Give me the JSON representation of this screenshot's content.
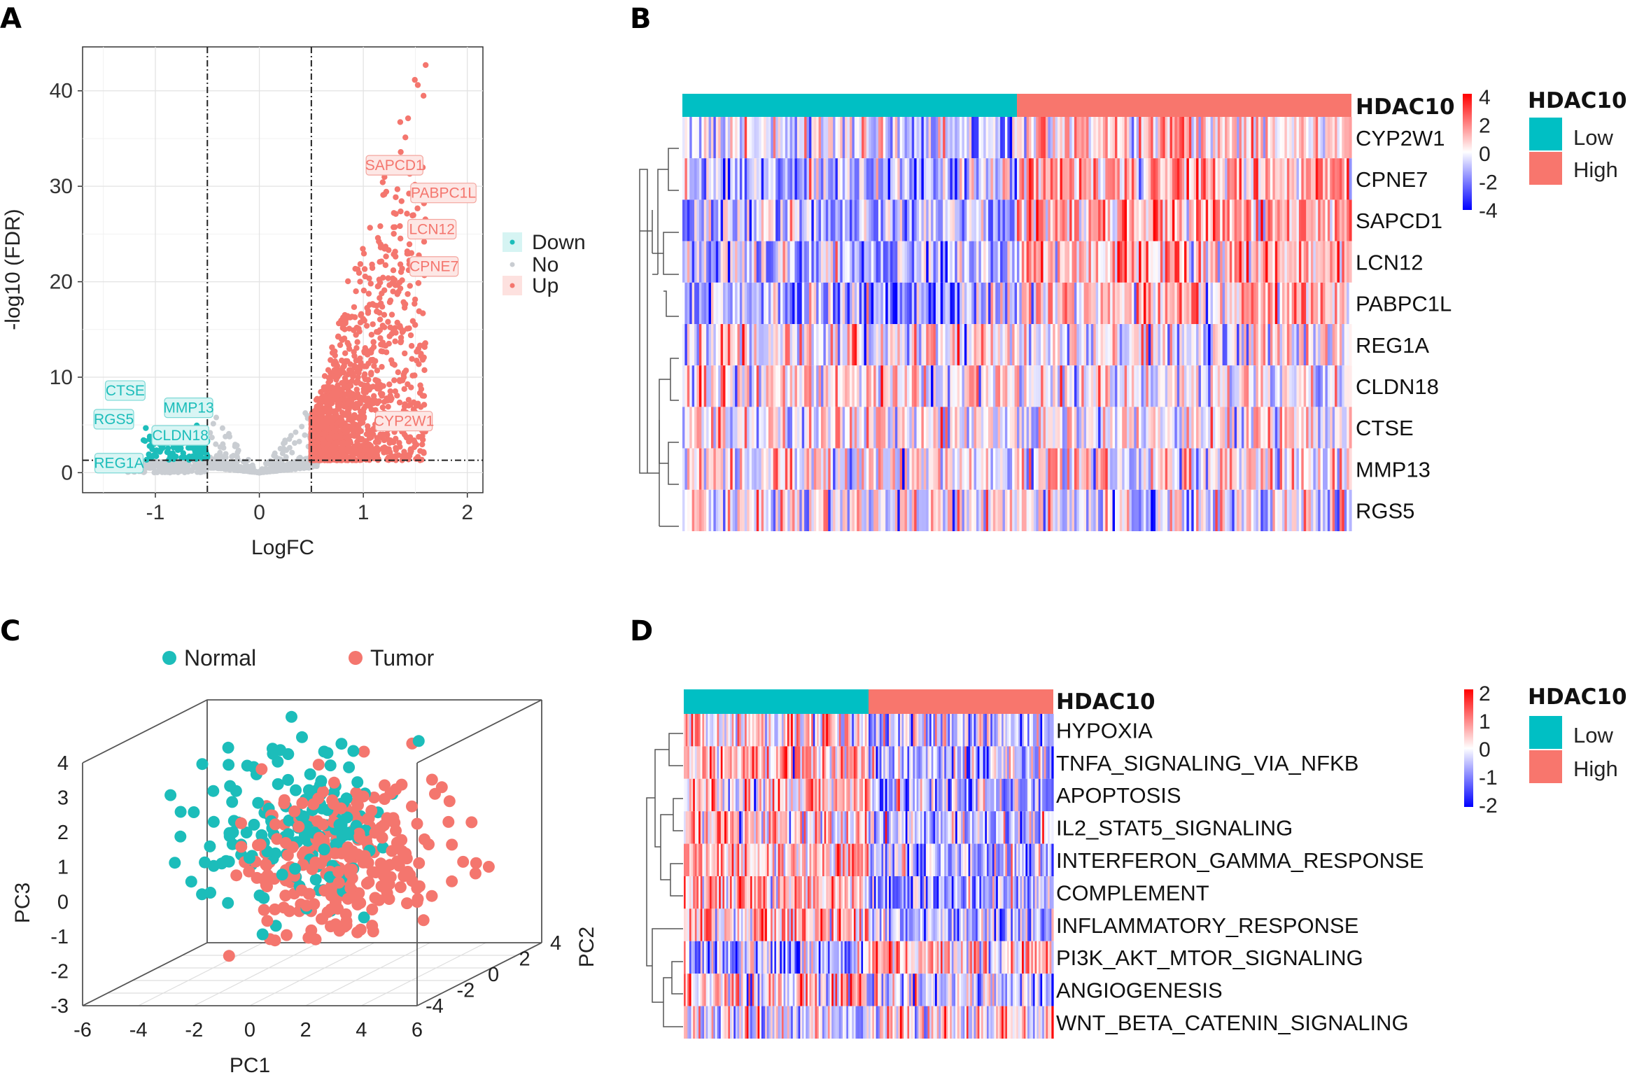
{
  "colors": {
    "down": "#1CBDBA",
    "up": "#F4766E",
    "no": "#C9CDD2",
    "low": "#00BFC4",
    "high": "#F8766D",
    "heat_high": "#FF0000",
    "heat_mid": "#FFFFFF",
    "heat_low": "#0000FF"
  },
  "panels": {
    "a": "A",
    "b": "B",
    "c": "C",
    "d": "D"
  },
  "chart_data": [
    {
      "panel": "A",
      "type": "scatter",
      "title": "",
      "xlabel": "LogFC",
      "ylabel": "-log10 (FDR)",
      "xlim": [
        -1.7,
        2.15
      ],
      "ylim": [
        -2.1,
        44.6
      ],
      "xticks": [
        -1,
        0,
        1,
        2
      ],
      "yticks": [
        0,
        10,
        20,
        30,
        40
      ],
      "grid": true,
      "legend_position": "right",
      "legend": [
        "Down",
        "No",
        "Up"
      ],
      "thresholds": {
        "logfc": [
          -0.5,
          0.5
        ],
        "fdr": 1.3
      },
      "labels": [
        {
          "text": "SAPCD1",
          "x": 1.3,
          "y": 32.2,
          "group": "Up"
        },
        {
          "text": "PABPC1L",
          "x": 1.77,
          "y": 29.3,
          "group": "Up"
        },
        {
          "text": "LCN12",
          "x": 1.66,
          "y": 25.5,
          "group": "Up"
        },
        {
          "text": "CPNE7",
          "x": 1.68,
          "y": 21.6,
          "group": "Up"
        },
        {
          "text": "CYP2W1",
          "x": 1.39,
          "y": 5.4,
          "group": "Up"
        },
        {
          "text": "CTSE",
          "x": -1.29,
          "y": 8.6,
          "group": "Down"
        },
        {
          "text": "MMP13",
          "x": -0.68,
          "y": 6.8,
          "group": "Down"
        },
        {
          "text": "RGS5",
          "x": -1.4,
          "y": 5.6,
          "group": "Down"
        },
        {
          "text": "CLDN18",
          "x": -0.76,
          "y": 3.9,
          "group": "Down"
        },
        {
          "text": "REG1A",
          "x": -1.35,
          "y": 1.0,
          "group": "Down"
        }
      ]
    },
    {
      "panel": "B",
      "type": "heatmap",
      "annotation_title": "HDAC10",
      "rows": [
        "CYP2W1",
        "CPNE7",
        "SAPCD1",
        "LCN12",
        "PABPC1L",
        "REG1A",
        "CLDN18",
        "CTSE",
        "MMP13",
        "RGS5"
      ],
      "groups": [
        {
          "name": "Low",
          "fraction": 0.5
        },
        {
          "name": "High",
          "fraction": 0.5
        }
      ],
      "colorbar_ticks": [
        "4",
        "2",
        "0",
        "-2",
        "-4"
      ],
      "legend_title": "HDAC10",
      "legend": [
        "Low",
        "High"
      ]
    },
    {
      "panel": "C",
      "type": "scatter",
      "subtype": "3d",
      "xlabel": "PC1",
      "ylabel": "PC3",
      "zlabel": "PC2",
      "xticks": [
        "-6",
        "-4",
        "-2",
        "0",
        "2",
        "4",
        "6"
      ],
      "yticks": [
        "4",
        "3",
        "2",
        "1",
        "0",
        "-1",
        "-2",
        "-3"
      ],
      "zticks": [
        "4",
        "2",
        "0",
        "-2",
        "-4"
      ],
      "legend_position": "top",
      "legend": [
        "Normal",
        "Tumor"
      ]
    },
    {
      "panel": "D",
      "type": "heatmap",
      "annotation_title": "HDAC10",
      "rows": [
        "HYPOXIA",
        "TNFA_SIGNALING_VIA_NFKB",
        "APOPTOSIS",
        "IL2_STAT5_SIGNALING",
        "INTERFERON_GAMMA_RESPONSE",
        "COMPLEMENT",
        "INFLAMMATORY_RESPONSE",
        "PI3K_AKT_MTOR_SIGNALING",
        "ANGIOGENESIS",
        "WNT_BETA_CATENIN_SIGNALING"
      ],
      "groups": [
        {
          "name": "Low",
          "fraction": 0.5
        },
        {
          "name": "High",
          "fraction": 0.5
        }
      ],
      "colorbar_ticks": [
        "2",
        "1",
        "0",
        "-1",
        "-2"
      ],
      "legend_title": "HDAC10",
      "legend": [
        "Low",
        "High"
      ]
    }
  ]
}
